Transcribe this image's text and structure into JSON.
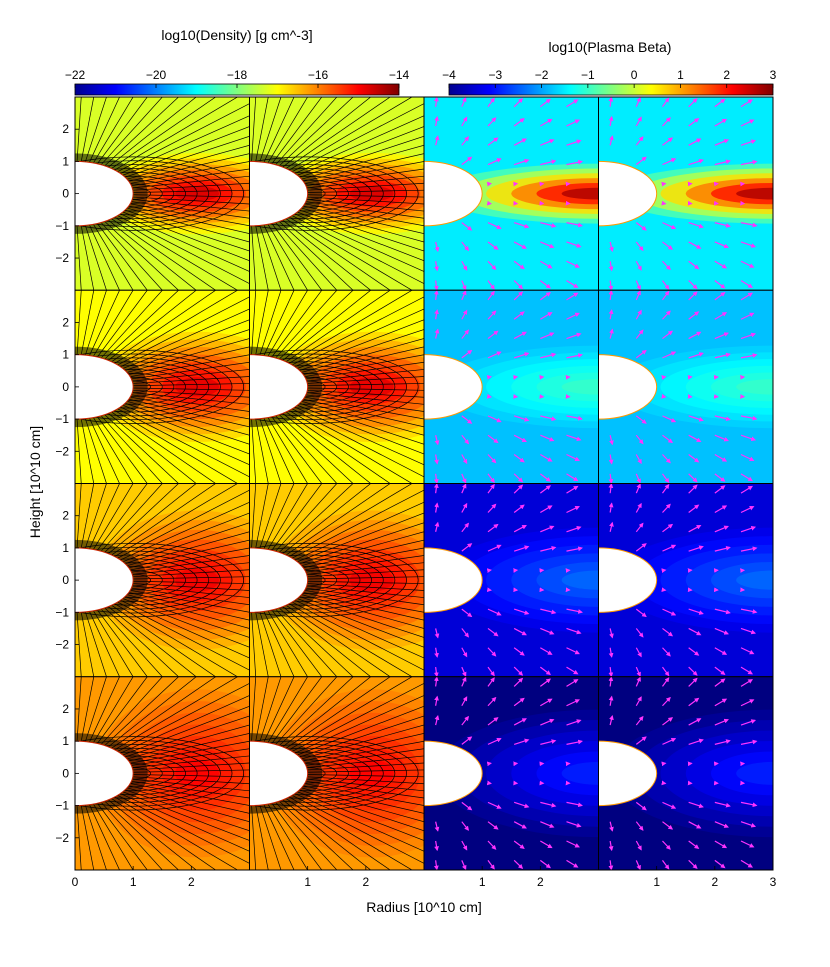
{
  "chart_data": {
    "type": "heatmap",
    "title": "",
    "xlabel": "Radius [10^10 cm]",
    "ylabel": "Height [10^10 cm]",
    "grid": "4 rows × 4 columns of panels; columns 1–2 show log10 density with black field lines, columns 3–4 show log10 plasma beta with magenta velocity arrows",
    "xlim": [
      0,
      3
    ],
    "ylim": [
      -3,
      3
    ],
    "x_ticks": {
      "column_1": [
        "0",
        "1",
        "2"
      ],
      "column_2": [
        "1",
        "2"
      ],
      "column_3": [
        "1",
        "2"
      ],
      "column_4": [
        "1",
        "2",
        "3"
      ]
    },
    "y_ticks": [
      "2",
      "1",
      "0",
      "−1",
      "−2"
    ],
    "colorbars": [
      {
        "name": "density",
        "label": "log10(Density) [g cm^-3]",
        "range": [
          -22,
          -14
        ],
        "tick_labels": [
          "−22",
          "−20",
          "−18",
          "−16",
          "−14"
        ],
        "colormap": "jet"
      },
      {
        "name": "plasma_beta",
        "label": "log10(Plasma Beta)",
        "range": [
          -4,
          3
        ],
        "tick_labels": [
          "−4",
          "−3",
          "−2",
          "−1",
          "0",
          "1",
          "2",
          "3"
        ],
        "colormap": "jet"
      }
    ],
    "panel_rows": [
      {
        "row": 1,
        "density_outer": -17.3,
        "density_torus": -14.7,
        "beta_background": -1.5,
        "beta_torus_peak": 2.7
      },
      {
        "row": 2,
        "density_outer": -17.0,
        "density_torus": -14.8,
        "beta_background": -1.8,
        "beta_torus_peak": -1.0
      },
      {
        "row": 3,
        "density_outer": -16.6,
        "density_torus": -14.9,
        "beta_background": -3.4,
        "beta_torus_peak": -2.4
      },
      {
        "row": 4,
        "density_outer": -16.2,
        "density_torus": -15.0,
        "beta_background": -4.0,
        "beta_torus_peak": -2.9
      }
    ]
  },
  "colors": {
    "field_lines": "#000000",
    "arrows": "#ff33ff",
    "star": "#ffffff"
  }
}
